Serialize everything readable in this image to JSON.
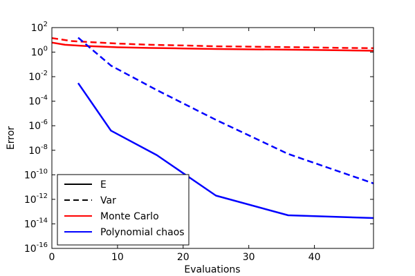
{
  "chart_data": {
    "type": "line",
    "xlabel": "Evaluations",
    "ylabel": "Error",
    "xlim": [
      0,
      49
    ],
    "ylim_log10": [
      -16,
      2
    ],
    "yscale": "log",
    "grid": false,
    "legend_placement": "lower-left",
    "x_ticks": [
      0,
      10,
      20,
      30,
      40
    ],
    "y_tick_exponents": [
      -16,
      -14,
      -12,
      -10,
      -8,
      -6,
      -4,
      -2,
      0,
      2
    ],
    "legend": [
      {
        "label": "E",
        "style": "solid",
        "color": "#000000"
      },
      {
        "label": "Var",
        "style": "dashed",
        "color": "#000000"
      },
      {
        "label": "Monte Carlo",
        "style": "solid",
        "color": "#ff0000"
      },
      {
        "label": "Polynomial chaos",
        "style": "solid",
        "color": "#0000ff"
      }
    ],
    "series": [
      {
        "method": "Monte Carlo",
        "statistic": "E",
        "color": "#ff0000",
        "style": "solid",
        "x": [
          0,
          2,
          5,
          10,
          15,
          20,
          25,
          30,
          35,
          40,
          45,
          49
        ],
        "y": [
          6.0,
          4.0,
          3.2,
          2.5,
          2.2,
          2.0,
          1.8,
          1.7,
          1.6,
          1.5,
          1.4,
          1.3
        ]
      },
      {
        "method": "Monte Carlo",
        "statistic": "Var",
        "color": "#ff0000",
        "style": "dashed",
        "x": [
          0,
          3,
          6,
          10,
          15,
          20,
          25,
          30,
          35,
          40,
          45,
          49
        ],
        "y": [
          14.0,
          8.0,
          6.5,
          5.0,
          4.0,
          3.5,
          3.0,
          2.8,
          2.6,
          2.4,
          2.2,
          2.1
        ]
      },
      {
        "method": "Polynomial chaos",
        "statistic": "E",
        "color": "#0000ff",
        "style": "solid",
        "x": [
          4,
          9,
          16,
          25,
          36,
          49
        ],
        "y": [
          0.003,
          4e-07,
          4e-09,
          2e-12,
          5e-14,
          3e-14
        ]
      },
      {
        "method": "Polynomial chaos",
        "statistic": "Var",
        "color": "#0000ff",
        "style": "dashed",
        "x": [
          4,
          9,
          16,
          25,
          36,
          49
        ],
        "y": [
          15,
          0.08,
          0.0008,
          3e-06,
          5e-09,
          2e-11
        ]
      }
    ]
  }
}
